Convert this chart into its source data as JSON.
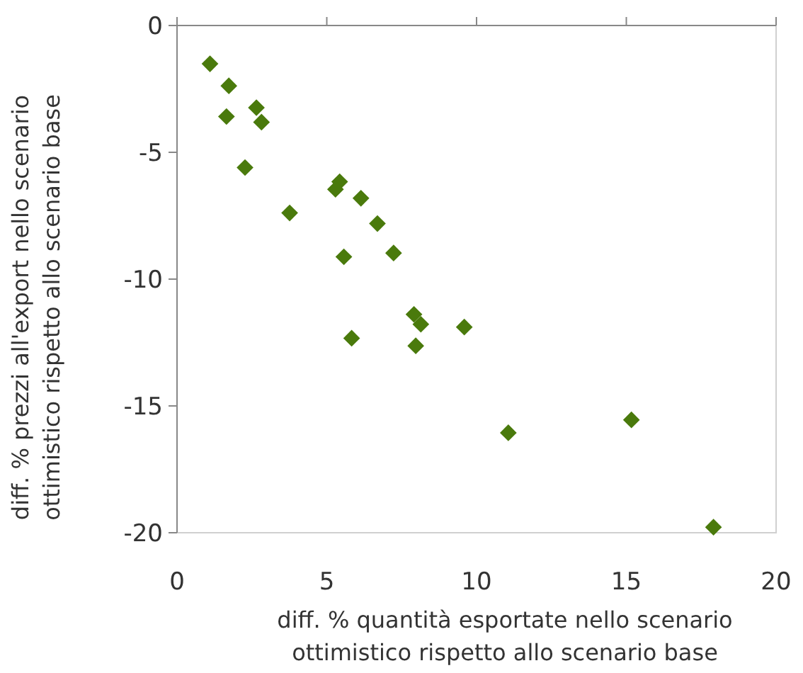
{
  "chart_data": {
    "type": "scatter",
    "xlabel": "diff. % quantità esportate nello scenario ottimistico rispetto allo scenario base",
    "ylabel": "diff. % prezzi all'export nello scenario ottimistico rispetto allo scenario base",
    "xlim": [
      0,
      20
    ],
    "ylim": [
      -20,
      0
    ],
    "xticks": [
      0,
      5,
      10,
      15,
      20
    ],
    "yticks": [
      0,
      -5,
      -10,
      -15,
      -20
    ],
    "grid": false,
    "marker": "diamond",
    "x": [
      1.1,
      1.73,
      1.65,
      2.65,
      2.82,
      2.27,
      3.76,
      5.43,
      5.29,
      6.14,
      6.69,
      5.57,
      7.23,
      7.91,
      8.14,
      5.83,
      7.97,
      9.59,
      11.06,
      15.17,
      17.91
    ],
    "series": [
      {
        "color": "#4a7a0c",
        "values": [
          -1.51,
          -2.38,
          -3.59,
          -3.24,
          -3.81,
          -5.6,
          -7.39,
          -6.16,
          -6.46,
          -6.81,
          -7.81,
          -9.12,
          -8.97,
          -11.39,
          -11.78,
          -12.33,
          -12.63,
          -11.89,
          -16.06,
          -15.55,
          -19.78
        ]
      }
    ]
  }
}
